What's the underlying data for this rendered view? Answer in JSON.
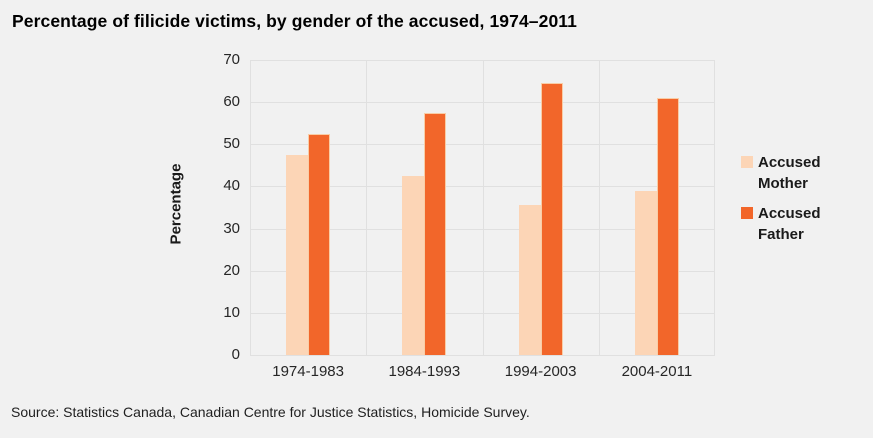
{
  "title": "Percentage of filicide victims, by gender of the accused, 1974–2011",
  "source": "Source: Statistics Canada, Canadian Centre for Justice Statistics, Homicide Survey.",
  "colors": {
    "background": "#f1f1f1",
    "gridline": "#e0e0e0",
    "accused_mother": "#fcd5b6",
    "accused_father": "#f2662a",
    "text": "#1a1a1a"
  },
  "chart_data": {
    "type": "bar",
    "title": "Percentage of filicide victims, by gender of the accused, 1974–2011",
    "categories": [
      "1974-1983",
      "1984-1993",
      "1994-2003",
      "2004-2011"
    ],
    "series": [
      {
        "name": "Accused Mother",
        "color": "#fcd5b6",
        "values": [
          47.5,
          42.5,
          35.5,
          39
        ]
      },
      {
        "name": "Accused Father",
        "color": "#f2662a",
        "values": [
          52.5,
          57.5,
          64.5,
          61
        ]
      }
    ],
    "xlabel": "",
    "ylabel": "Percentage",
    "ylim": [
      0,
      70
    ],
    "ytick_step": 10,
    "grid": true,
    "legend_position": "right"
  }
}
